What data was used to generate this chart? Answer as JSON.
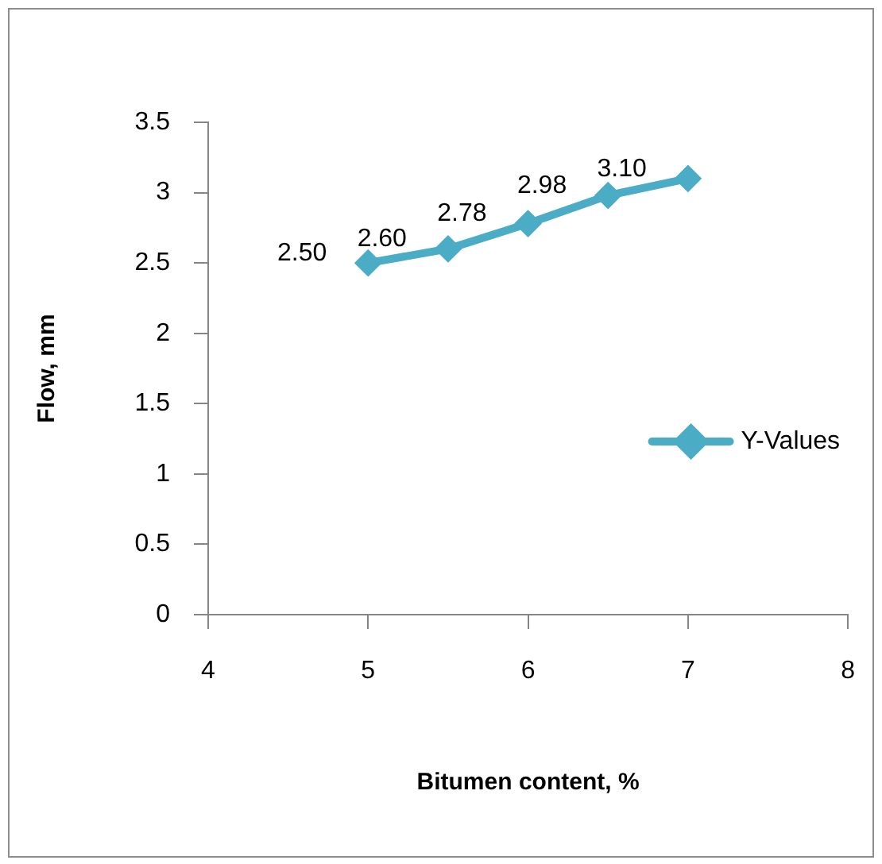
{
  "chart_data": {
    "type": "line",
    "xlabel": "Bitumen content, %",
    "ylabel": "Flow, mm",
    "x": [
      5,
      5.5,
      6,
      6.5,
      7
    ],
    "series": [
      {
        "name": "Y-Values",
        "color": "#4bacc6",
        "values": [
          2.5,
          2.6,
          2.78,
          2.98,
          3.1
        ],
        "value_labels": [
          "2.50",
          "2.60",
          "2.78",
          "2.98",
          "3.10"
        ]
      }
    ],
    "xlim": [
      4,
      8
    ],
    "xticks": [
      4,
      5,
      6,
      7,
      8
    ],
    "ylim": [
      0,
      3.5
    ],
    "yticks": [
      0,
      0.5,
      1,
      1.5,
      2,
      2.5,
      3,
      3.5
    ],
    "grid": false,
    "legend": "right",
    "marker": "diamond",
    "line_style": "solid"
  }
}
